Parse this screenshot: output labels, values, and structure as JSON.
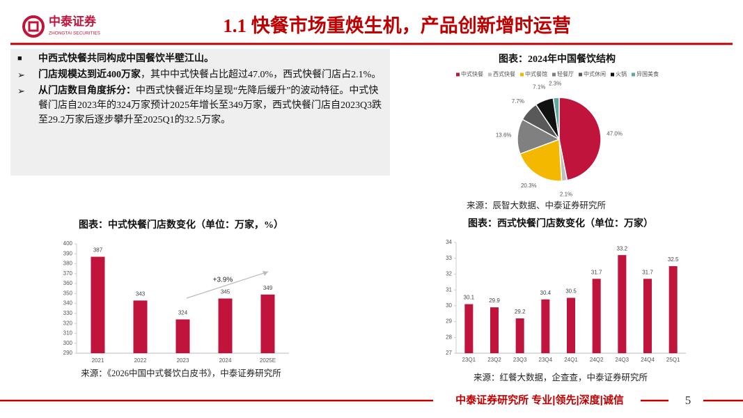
{
  "header": {
    "logo_name": "中泰证券",
    "logo_sub": "ZHONGTAI SECURITIES",
    "title": "1.1 快餐市场重焕生机，产品创新增时运营"
  },
  "bullets": [
    {
      "bold": "中西式快餐共同构成中国餐饮半壁江山。"
    },
    {
      "bold": "门店规模达到近400万家",
      "text": "，其中中式快餐占比超过47.0%，西式快餐门店占2.1%。"
    },
    {
      "bold": "从门店数目角度拆分：",
      "text": "中西式快餐近年均呈现“先降后缓升”的波动特征。中式快餐门店自2023年的324万家预计2025年增长至349万家，西式快餐门店自2023Q3跌至29.2万家后逐步攀升至2025Q1的32.5万家。"
    }
  ],
  "chart_data": [
    {
      "type": "pie",
      "title": "图表：2024年中国餐饮结构",
      "categories": [
        "中式快餐",
        "西式快餐",
        "中式餐馆",
        "轻餐厅",
        "中式休闲",
        "火锅",
        "异国美食"
      ],
      "values": [
        47.0,
        2.1,
        20.3,
        13.6,
        7.7,
        7.1,
        2.3
      ],
      "value_labels": [
        "47.0%",
        "2.1%",
        "20.3%",
        "13.6%",
        "7.7%",
        "7.1%",
        "2.3%"
      ],
      "colors": [
        "#c0143c",
        "#bfbfbf",
        "#f5b800",
        "#808080",
        "#595959",
        "#111111",
        "#5fa8a0"
      ],
      "source": "来源：辰智大数据、中泰证券研究所"
    },
    {
      "type": "bar",
      "title": "图表：中式快餐门店数变化（单位：万家，%）",
      "categories": [
        "2021",
        "2022",
        "2023",
        "2024",
        "2025E"
      ],
      "values": [
        387,
        343,
        324,
        345,
        349
      ],
      "color": "#c0143c",
      "ylim": [
        290,
        400
      ],
      "yticks": [
        290,
        300,
        310,
        320,
        330,
        340,
        350,
        360,
        370,
        380,
        390,
        400
      ],
      "grid": false,
      "annotation": "+3.9%",
      "source": "来源：《2026中国中式餐饮白皮书》，中泰证券研究所"
    },
    {
      "type": "bar",
      "title": "图表：西式快餐门店数变化（单位：万家）",
      "categories": [
        "23Q1",
        "23Q2",
        "23Q3",
        "23Q4",
        "24Q1",
        "24Q2",
        "24Q3",
        "24Q4",
        "25Q1"
      ],
      "values": [
        30.1,
        29.9,
        29.2,
        30.4,
        30.5,
        31.7,
        33.2,
        31.7,
        32.5
      ],
      "color": "#c0143c",
      "ylim": [
        27,
        34
      ],
      "yticks": [
        27,
        28,
        29,
        30,
        31,
        32,
        33,
        34
      ],
      "grid": false,
      "source": "来源：红餐大数据，企查查，中泰证券研究所"
    }
  ],
  "footer": {
    "text": "中泰证券研究所 专业|领先|深度|诚信",
    "page": "5"
  }
}
